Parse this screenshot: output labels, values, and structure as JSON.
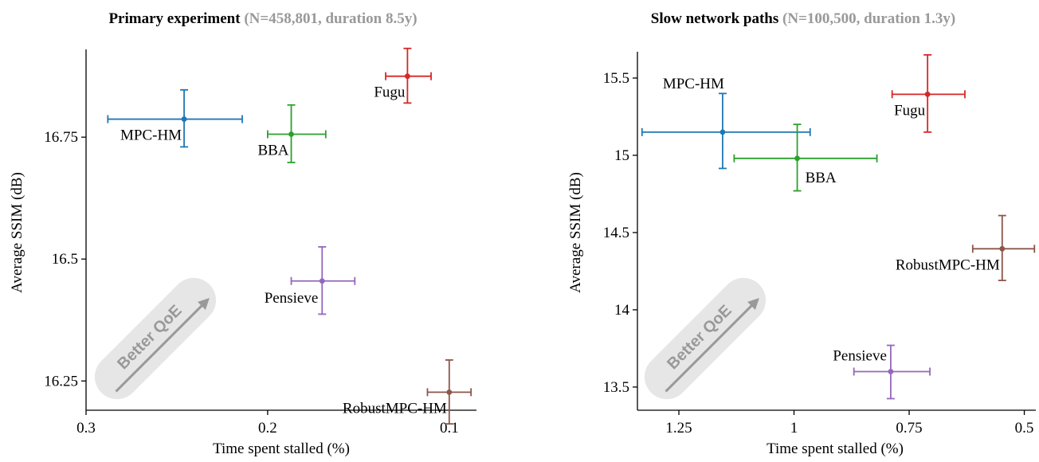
{
  "chart_data": [
    {
      "type": "scatter",
      "title": "Primary experiment",
      "subtitle": "(N=458,801, duration 8.5y)",
      "xlabel": "Time spent stalled (%)",
      "ylabel": "Average SSIM (dB)",
      "xlim": [
        0.3,
        0.085
      ],
      "ylim": [
        16.19,
        16.93
      ],
      "x_inverted": true,
      "xticks": [
        0.3,
        0.2,
        0.1
      ],
      "xtick_labels": [
        "0.3",
        "0.2",
        "0.1"
      ],
      "yticks": [
        16.75,
        16.5,
        16.25
      ],
      "ytick_labels": [
        "16.75",
        "16.5",
        "16.25"
      ],
      "grid": false,
      "annotation": "Better QoE",
      "points": [
        {
          "label": "MPC-HM",
          "x": 0.246,
          "y": 16.787,
          "xerr": [
            0.288,
            0.214
          ],
          "yerr": [
            16.73,
            16.847
          ],
          "color": "#1f77b4",
          "label_pos": "below-left"
        },
        {
          "label": "BBA",
          "x": 0.187,
          "y": 16.756,
          "xerr": [
            0.2,
            0.168
          ],
          "yerr": [
            16.698,
            16.816
          ],
          "color": "#2ca02c",
          "label_pos": "below-left"
        },
        {
          "label": "Fugu",
          "x": 0.123,
          "y": 16.875,
          "xerr": [
            0.135,
            0.11
          ],
          "yerr": [
            16.82,
            16.932
          ],
          "color": "#d62728",
          "label_pos": "below-left"
        },
        {
          "label": "Pensieve",
          "x": 0.17,
          "y": 16.455,
          "xerr": [
            0.187,
            0.152
          ],
          "yerr": [
            16.387,
            16.525
          ],
          "color": "#9467bd",
          "label_pos": "left"
        },
        {
          "label": "RobustMPC-HM",
          "x": 0.1,
          "y": 16.227,
          "xerr": [
            0.112,
            0.088
          ],
          "yerr": [
            16.162,
            16.293
          ],
          "color": "#8c564b",
          "label_pos": "below-left"
        }
      ]
    },
    {
      "type": "scatter",
      "title": "Slow network paths",
      "subtitle": "(N=100,500, duration 1.3y)",
      "xlabel": "Time spent stalled (%)",
      "ylabel": "Average SSIM (dB)",
      "xlim": [
        1.34,
        0.475
      ],
      "ylim": [
        13.35,
        15.67
      ],
      "x_inverted": true,
      "xticks": [
        1.25,
        1.0,
        0.75,
        0.5
      ],
      "xtick_labels": [
        "1.25",
        "1",
        "0.75",
        "0.5"
      ],
      "yticks": [
        15.5,
        15.0,
        14.5,
        14.0,
        13.5
      ],
      "ytick_labels": [
        "15.5",
        "15",
        "14.5",
        "14",
        "13.5"
      ],
      "grid": false,
      "annotation": "Better QoE",
      "points": [
        {
          "label": "MPC-HM",
          "x": 1.155,
          "y": 15.15,
          "xerr": [
            1.33,
            0.965
          ],
          "yerr": [
            14.915,
            15.4
          ],
          "color": "#1f77b4",
          "label_pos": "above-left"
        },
        {
          "label": "BBA",
          "x": 0.993,
          "y": 14.98,
          "xerr": [
            1.13,
            0.82
          ],
          "yerr": [
            14.77,
            15.2
          ],
          "color": "#2ca02c",
          "label_pos": "below-right"
        },
        {
          "label": "Fugu",
          "x": 0.71,
          "y": 15.395,
          "xerr": [
            0.787,
            0.629
          ],
          "yerr": [
            15.15,
            15.65
          ],
          "color": "#d62728",
          "label_pos": "below-left"
        },
        {
          "label": "RobustMPC-HM",
          "x": 0.548,
          "y": 14.395,
          "xerr": [
            0.612,
            0.478
          ],
          "yerr": [
            14.19,
            14.61
          ],
          "color": "#8c564b",
          "label_pos": "below-left"
        },
        {
          "label": "Pensieve",
          "x": 0.79,
          "y": 13.6,
          "xerr": [
            0.87,
            0.705
          ],
          "yerr": [
            13.425,
            13.77
          ],
          "color": "#9467bd",
          "label_pos": "above-left"
        }
      ]
    }
  ]
}
